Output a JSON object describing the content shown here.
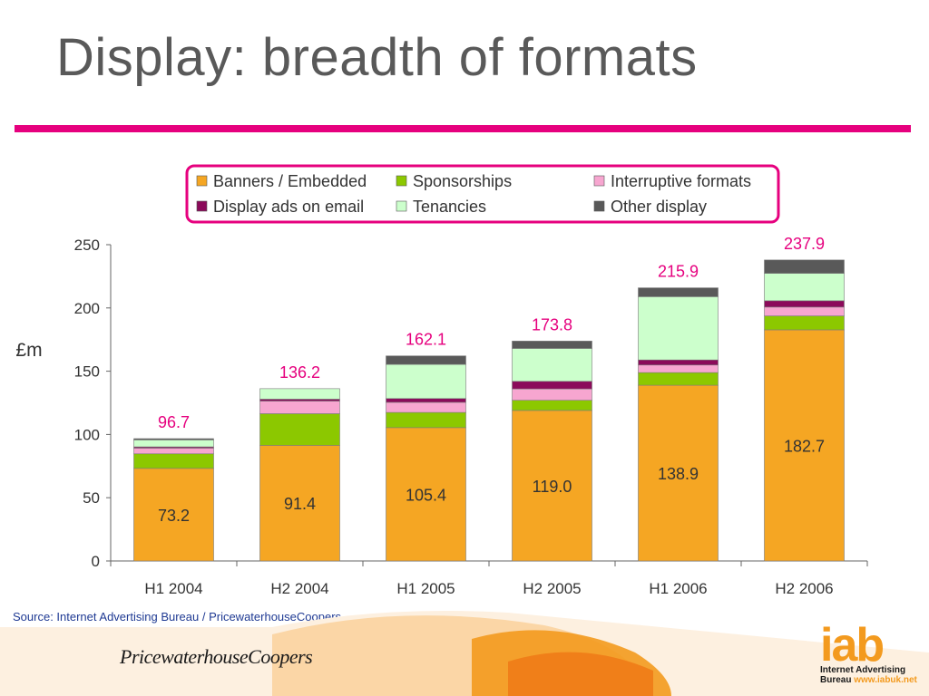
{
  "slide": {
    "title": "Display: breadth of formats",
    "source": "Source: Internet Advertising Bureau / PricewaterhouseCoopers"
  },
  "footer": {
    "pwc_logo_text": "PricewaterhouseCoopers",
    "iab_mark": "iab",
    "iab_line1": "Internet Advertising",
    "iab_line2_prefix": "Bureau",
    "iab_url": "www.iabuk.net"
  },
  "colors": {
    "accent": "#e6007e",
    "banners": "#f5a623",
    "sponsorships": "#8cc800",
    "interruptive": "#f7a6d0",
    "email": "#8b0a5a",
    "tenancies": "#ccffcc",
    "other": "#595959"
  },
  "chart_data": {
    "type": "bar",
    "stacked": true,
    "title": "",
    "xlabel": "",
    "ylabel": "£m",
    "ylim": [
      0,
      250
    ],
    "yticks": [
      0,
      50,
      100,
      150,
      200,
      250
    ],
    "categories": [
      "H1 2004",
      "H2 2004",
      "H1 2005",
      "H2 2005",
      "H1 2006",
      "H2 2006"
    ],
    "totals": [
      "96.7",
      "136.2",
      "162.1",
      "173.8",
      "215.9",
      "237.9"
    ],
    "base_labels": [
      "73.2",
      "91.4",
      "105.4",
      "119.0",
      "138.9",
      "182.7"
    ],
    "legend_position": "top-right",
    "series": [
      {
        "name": "Banners / Embedded",
        "color_key": "banners",
        "values": [
          73.2,
          91.4,
          105.4,
          119.0,
          138.9,
          182.7
        ]
      },
      {
        "name": "Sponsorships",
        "color_key": "sponsorships",
        "values": [
          11.5,
          25.0,
          12.0,
          8.0,
          10.0,
          11.0
        ]
      },
      {
        "name": "Interruptive formats",
        "color_key": "interruptive",
        "values": [
          4.5,
          10.0,
          8.0,
          9.0,
          6.0,
          7.0
        ]
      },
      {
        "name": "Display ads on email",
        "color_key": "email",
        "values": [
          1.0,
          1.5,
          3.0,
          6.0,
          4.0,
          5.0
        ]
      },
      {
        "name": "Tenancies",
        "color_key": "tenancies",
        "values": [
          5.5,
          8.3,
          27.0,
          26.0,
          50.0,
          21.7
        ]
      },
      {
        "name": "Other display",
        "color_key": "other",
        "values": [
          1.0,
          0,
          6.7,
          5.8,
          7.0,
          10.5
        ]
      }
    ]
  }
}
